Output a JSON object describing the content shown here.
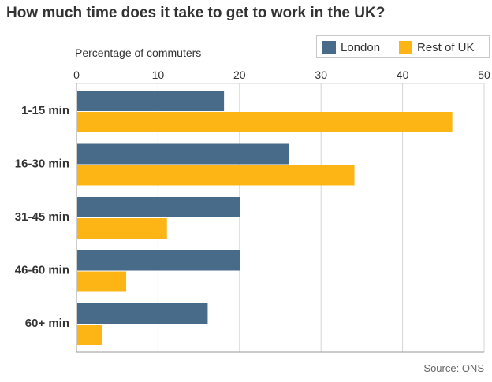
{
  "title": "How much time does it take to get to work in the UK?",
  "legend": {
    "london": "London",
    "rest": "Rest of UK"
  },
  "source": "Source: ONS",
  "colors": {
    "london": "#476b89",
    "rest": "#fdb515",
    "grid": "#d4d4d4",
    "axis": "#999999",
    "text": "#333333"
  },
  "chart_data": {
    "type": "bar",
    "orientation": "horizontal",
    "title": "How much time does it take to get to work in the UK?",
    "xlabel": "Percentage of commuters",
    "ylabel": "",
    "xlim": [
      0,
      50
    ],
    "ticks": [
      0,
      10,
      20,
      30,
      40,
      50
    ],
    "categories": [
      "1-15 min",
      "16-30 min",
      "31-45 min",
      "46-60 min",
      "60+ min"
    ],
    "series": [
      {
        "name": "London",
        "values": [
          18,
          26,
          20,
          20,
          16
        ]
      },
      {
        "name": "Rest of UK",
        "values": [
          46,
          34,
          11,
          6,
          3
        ]
      }
    ],
    "grid": true,
    "legend_position": "top-right"
  }
}
